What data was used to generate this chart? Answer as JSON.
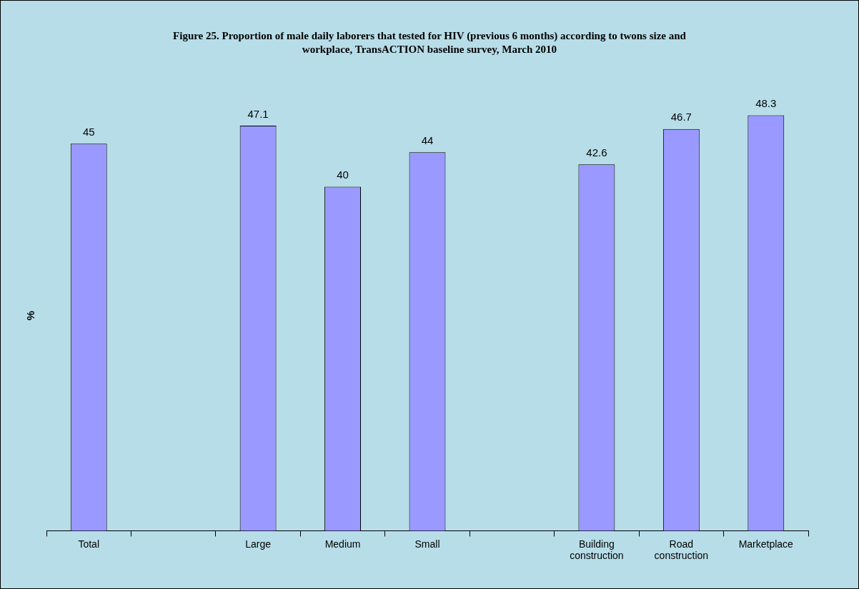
{
  "chart_data": {
    "type": "bar",
    "title": "Figure 25. Proportion of male daily laborers that tested for HIV (previous 6 months) according to twons size and workplace, TransACTION baseline survey, March 2010",
    "ylabel": "%",
    "categories": [
      "Total",
      null,
      "Large",
      "Medium",
      "Small",
      null,
      "Building construction",
      "Road construction",
      "Marketplace"
    ],
    "values": [
      45,
      null,
      47.1,
      40,
      44,
      null,
      42.6,
      46.7,
      48.3
    ],
    "color": "#9999ff",
    "data_labels": true,
    "grid": false,
    "legend": false
  }
}
